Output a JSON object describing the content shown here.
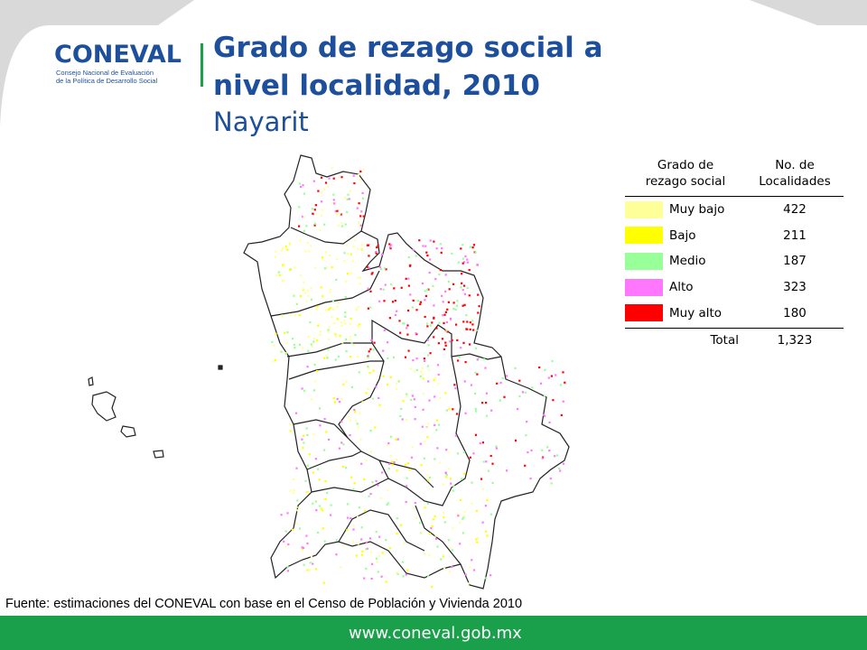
{
  "logo": {
    "name": "CONEVAL",
    "subtitle_line1": "Consejo Nacional de Evaluación",
    "subtitle_line2": "de la Política de Desarrollo Social"
  },
  "header": {
    "title_line1": "Grado de rezago social a",
    "title_line2": "nivel localidad, 2010",
    "subtitle": "Nayarit"
  },
  "legend": {
    "col1_line1": "Grado de",
    "col1_line2": "rezago social",
    "col2_line1": "No. de",
    "col2_line2": "Localidades",
    "rows": [
      {
        "label": "Muy bajo",
        "value": "422",
        "color": "#ffff99"
      },
      {
        "label": "Bajo",
        "value": "211",
        "color": "#ffff00"
      },
      {
        "label": "Medio",
        "value": "187",
        "color": "#99ff99"
      },
      {
        "label": "Alto",
        "value": "323",
        "color": "#ff77ff"
      },
      {
        "label": "Muy alto",
        "value": "180",
        "color": "#ff0000"
      }
    ],
    "total_label": "Total",
    "total_value": "1,323"
  },
  "source": "Fuente: estimaciones del CONEVAL con base en el Censo de Población y Vivienda 2010",
  "footer": {
    "url": "www.coneval.gob.mx"
  },
  "colors": {
    "brand_blue": "#1d4f9c",
    "brand_green": "#1aa04a",
    "frame_gray": "#d9d9d9"
  }
}
